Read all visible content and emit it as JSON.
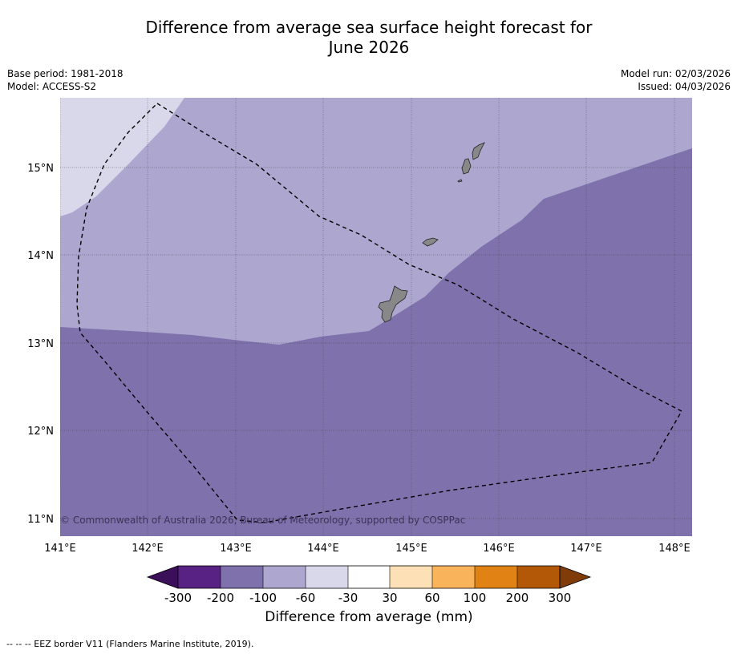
{
  "title_line1": "Difference from average sea surface height forecast for",
  "title_line2": "June 2026",
  "meta_left": {
    "base_period": "Base period: 1981-2018",
    "model": "Model: ACCESS-S2"
  },
  "meta_right": {
    "model_run": "Model run: 02/03/2026",
    "issued": "Issued: 04/03/2026"
  },
  "map": {
    "lon_labels": [
      "141°E",
      "142°E",
      "143°E",
      "144°E",
      "145°E",
      "146°E",
      "147°E",
      "148°E"
    ],
    "lat_labels": [
      "15°N",
      "14°N",
      "13°N",
      "12°N",
      "11°N"
    ],
    "copyright": "© Commonwealth of Australia 2026, Bureau of Meteorology, supported by COSPPac",
    "colors": {
      "band_-200_-100": "#7f72ac",
      "band_-100_-60": "#ada7d0",
      "band_-60_-30": "#d8d8ea",
      "land": "#888888"
    }
  },
  "colorbar": {
    "ticks": [
      "-300",
      "-200",
      "-100",
      "-60",
      "-30",
      "30",
      "60",
      "100",
      "200",
      "300"
    ],
    "colors": [
      "#3b0f59",
      "#582284",
      "#7f72ac",
      "#ada7d0",
      "#d8d8ea",
      "#ffffff",
      "#fde0b5",
      "#f9b35b",
      "#e08214",
      "#b35806",
      "#7f3b08"
    ],
    "label": "Difference from average (mm)"
  },
  "footnote": "--  --  -- EEZ border V11 (Flanders Marine Institute, 2019)."
}
